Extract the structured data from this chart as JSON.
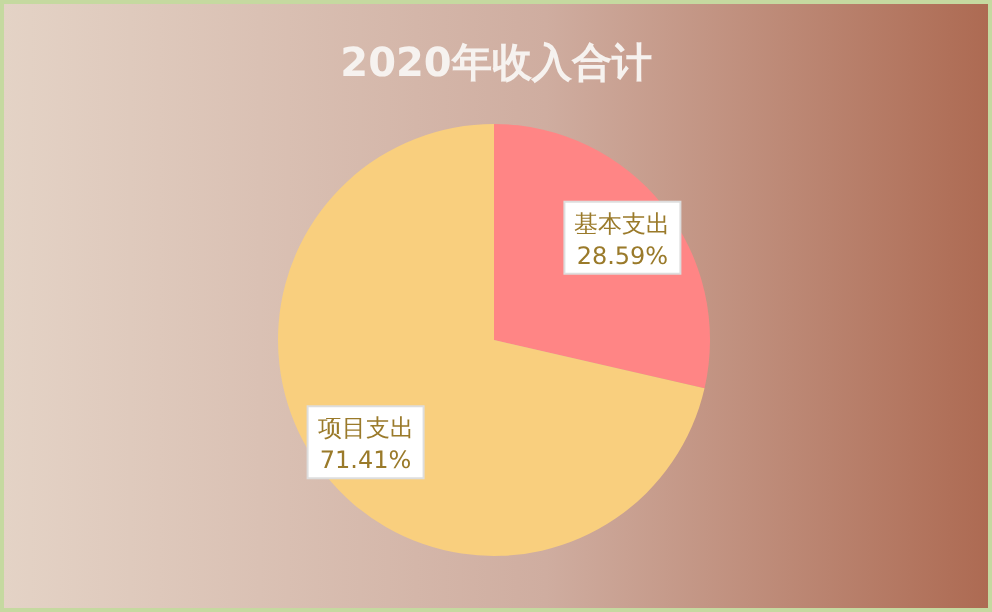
{
  "chart_data": {
    "type": "pie",
    "title": "2020年收入合计",
    "categories": [
      "基本支出",
      "项目支出"
    ],
    "values": [
      28.59,
      71.41
    ],
    "value_labels": [
      "28.59%",
      "71.41%"
    ],
    "colors": [
      "#ff8585",
      "#f9cf7e"
    ]
  }
}
